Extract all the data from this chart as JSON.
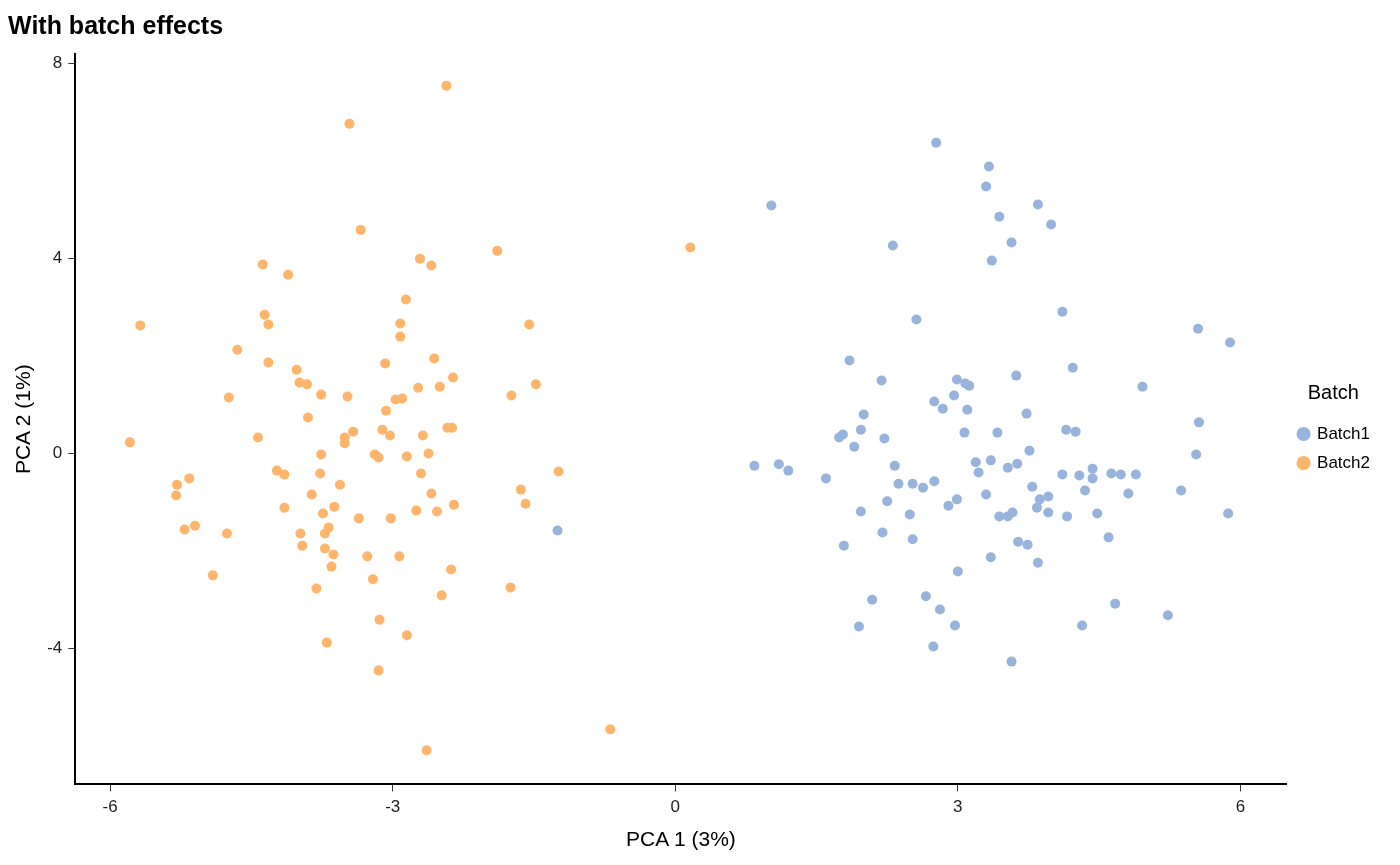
{
  "chart_data": {
    "type": "scatter",
    "title": "With batch effects",
    "xlabel": "PCA 1 (3%)",
    "ylabel": "PCA 2 (1%)",
    "legend_title": "Batch",
    "legend": "right",
    "grid": false,
    "marker": "circle",
    "xlim": [
      -6.37,
      6.49
    ],
    "ylim": [
      -6.79,
      8.2
    ],
    "xticks": [
      -6,
      -3,
      0,
      3,
      6
    ],
    "yticks": [
      -4,
      0,
      4,
      8
    ],
    "series": [
      {
        "name": "Batch1",
        "color": "#99b4dc",
        "x": [
          2.77,
          3.33,
          3.3,
          1.02,
          3.85,
          3.44,
          3.99,
          3.57,
          2.31,
          3.36,
          4.11,
          2.56,
          5.55,
          5.89,
          1.85,
          3.62,
          4.22,
          2.19,
          2.99,
          3.08,
          3.12,
          4.96,
          2.96,
          2.75,
          2.84,
          3.1,
          2.0,
          3.73,
          5.56,
          3.07,
          3.42,
          4.15,
          4.25,
          1.97,
          1.78,
          1.74,
          2.22,
          1.9,
          3.76,
          1.1,
          1.2,
          0.84,
          5.53,
          3.19,
          3.35,
          3.63,
          3.53,
          3.22,
          2.33,
          4.89,
          4.11,
          4.29,
          4.43,
          4.43,
          4.35,
          4.63,
          4.73,
          4.81,
          1.6,
          2.37,
          2.52,
          2.63,
          2.75,
          3.79,
          5.37,
          3.3,
          3.96,
          3.87,
          2.25,
          2.99,
          2.9,
          3.84,
          3.96,
          4.16,
          4.48,
          5.87,
          2.49,
          1.97,
          3.44,
          3.53,
          3.58,
          4.6,
          2.52,
          2.2,
          3.64,
          3.74,
          1.79,
          -1.25,
          3.35,
          3.85,
          3.0,
          2.09,
          2.66,
          2.81,
          4.67,
          5.23,
          1.95,
          2.97,
          4.32,
          2.74,
          3.57
        ],
        "values": [
          6.38,
          5.89,
          5.48,
          5.09,
          5.11,
          4.86,
          4.7,
          4.33,
          4.27,
          3.96,
          2.91,
          2.75,
          2.56,
          2.28,
          1.91,
          1.6,
          1.76,
          1.5,
          1.52,
          1.44,
          1.39,
          1.37,
          1.19,
          1.07,
          0.92,
          0.9,
          0.8,
          0.82,
          0.64,
          0.43,
          0.43,
          0.49,
          0.45,
          0.49,
          0.39,
          0.33,
          0.31,
          0.14,
          0.06,
          -0.22,
          -0.35,
          -0.25,
          -0.02,
          -0.18,
          -0.14,
          -0.21,
          -0.29,
          -0.39,
          -0.25,
          -0.43,
          -0.43,
          -0.45,
          -0.31,
          -0.51,
          -0.76,
          -0.41,
          -0.43,
          -0.82,
          -0.51,
          -0.62,
          -0.62,
          -0.7,
          -0.57,
          -0.68,
          -0.76,
          -0.84,
          -0.88,
          -0.94,
          -0.98,
          -0.94,
          -1.07,
          -1.11,
          -1.21,
          -1.29,
          -1.23,
          -1.23,
          -1.25,
          -1.19,
          -1.29,
          -1.29,
          -1.21,
          -1.72,
          -1.76,
          -1.62,
          -1.81,
          -1.87,
          -1.89,
          -1.58,
          -2.13,
          -2.24,
          -2.42,
          -3.0,
          -2.93,
          -3.2,
          -3.08,
          -3.32,
          -3.55,
          -3.53,
          -3.53,
          -3.96,
          -4.27
        ]
      },
      {
        "name": "Batch2",
        "color": "#ffb56b",
        "x": [
          -2.43,
          -3.46,
          -3.34,
          -4.38,
          -4.11,
          -2.71,
          -2.59,
          -1.89,
          0.16,
          -2.86,
          -5.68,
          -4.36,
          -4.32,
          -2.92,
          -2.92,
          -1.55,
          -4.65,
          -4.32,
          -3.08,
          -2.56,
          -4.02,
          -3.99,
          -3.91,
          -2.36,
          -2.73,
          -2.5,
          -1.48,
          -4.74,
          -3.76,
          -3.48,
          -2.97,
          -2.9,
          -1.74,
          -3.07,
          -3.9,
          -2.42,
          -2.37,
          -3.42,
          -3.11,
          -3.03,
          -4.43,
          -3.51,
          -3.51,
          -2.68,
          -5.79,
          -3.19,
          -3.15,
          -2.85,
          -2.62,
          -3.76,
          -4.23,
          -4.15,
          -3.77,
          -2.7,
          -1.24,
          -5.29,
          -5.16,
          -3.56,
          -1.64,
          -5.3,
          -3.86,
          -2.59,
          -4.15,
          -3.62,
          -2.35,
          -1.59,
          -3.74,
          -2.75,
          -2.53,
          -3.36,
          -3.02,
          -5.1,
          -5.21,
          -3.98,
          -3.72,
          -3.68,
          -4.76,
          -3.96,
          -3.72,
          -3.63,
          -3.27,
          -2.93,
          -3.65,
          -2.38,
          -4.91,
          -3.21,
          -3.81,
          -1.75,
          -2.48,
          -3.14,
          -2.85,
          -3.7,
          -3.15,
          -2.64,
          -0.69
        ],
        "values": [
          7.55,
          6.77,
          4.59,
          3.88,
          3.67,
          4.0,
          3.86,
          4.16,
          4.23,
          3.16,
          2.63,
          2.85,
          2.65,
          2.67,
          2.4,
          2.65,
          2.13,
          1.87,
          1.85,
          1.95,
          1.72,
          1.46,
          1.42,
          1.56,
          1.35,
          1.37,
          1.42,
          1.15,
          1.21,
          1.17,
          1.11,
          1.13,
          1.19,
          0.88,
          0.74,
          0.53,
          0.53,
          0.45,
          0.49,
          0.37,
          0.33,
          0.33,
          0.21,
          0.37,
          0.23,
          -0.02,
          -0.08,
          -0.06,
          0.0,
          -0.02,
          -0.35,
          -0.43,
          -0.41,
          -0.41,
          -0.37,
          -0.64,
          -0.51,
          -0.64,
          -0.74,
          -0.86,
          -0.84,
          -0.82,
          -1.11,
          -1.09,
          -1.05,
          -1.03,
          -1.23,
          -1.17,
          -1.19,
          -1.33,
          -1.33,
          -1.48,
          -1.56,
          -1.64,
          -1.64,
          -1.52,
          -1.64,
          -1.89,
          -1.95,
          -2.07,
          -2.11,
          -2.11,
          -2.32,
          -2.38,
          -2.5,
          -2.58,
          -2.77,
          -2.75,
          -2.91,
          -3.41,
          -3.73,
          -3.88,
          -4.45,
          -6.09,
          -5.66
        ]
      }
    ]
  }
}
